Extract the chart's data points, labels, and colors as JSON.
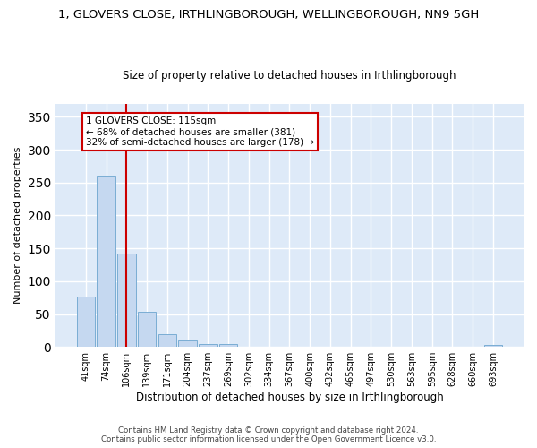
{
  "title": "1, GLOVERS CLOSE, IRTHLINGBOROUGH, WELLINGBOROUGH, NN9 5GH",
  "subtitle": "Size of property relative to detached houses in Irthlingborough",
  "xlabel": "Distribution of detached houses by size in Irthlingborough",
  "ylabel": "Number of detached properties",
  "bar_color": "#c5d8f0",
  "bar_edge_color": "#7aadd4",
  "background_color": "#deeaf8",
  "grid_color": "#ffffff",
  "annotation_line_color": "#cc0000",
  "annotation_box_color": "#cc0000",
  "annotation_text": "1 GLOVERS CLOSE: 115sqm\n← 68% of detached houses are smaller (381)\n32% of semi-detached houses are larger (178) →",
  "footer_line1": "Contains HM Land Registry data © Crown copyright and database right 2024.",
  "footer_line2": "Contains public sector information licensed under the Open Government Licence v3.0.",
  "categories": [
    "41sqm",
    "74sqm",
    "106sqm",
    "139sqm",
    "171sqm",
    "204sqm",
    "237sqm",
    "269sqm",
    "302sqm",
    "334sqm",
    "367sqm",
    "400sqm",
    "432sqm",
    "465sqm",
    "497sqm",
    "530sqm",
    "563sqm",
    "595sqm",
    "628sqm",
    "660sqm",
    "693sqm"
  ],
  "values": [
    77,
    261,
    142,
    54,
    19,
    10,
    4,
    4,
    0,
    0,
    0,
    0,
    0,
    0,
    0,
    0,
    0,
    0,
    0,
    0,
    3
  ],
  "property_line_x": 2.0,
  "ylim": [
    0,
    370
  ],
  "yticks": [
    0,
    50,
    100,
    150,
    200,
    250,
    300,
    350
  ],
  "fig_width": 6.0,
  "fig_height": 5.0,
  "dpi": 100
}
